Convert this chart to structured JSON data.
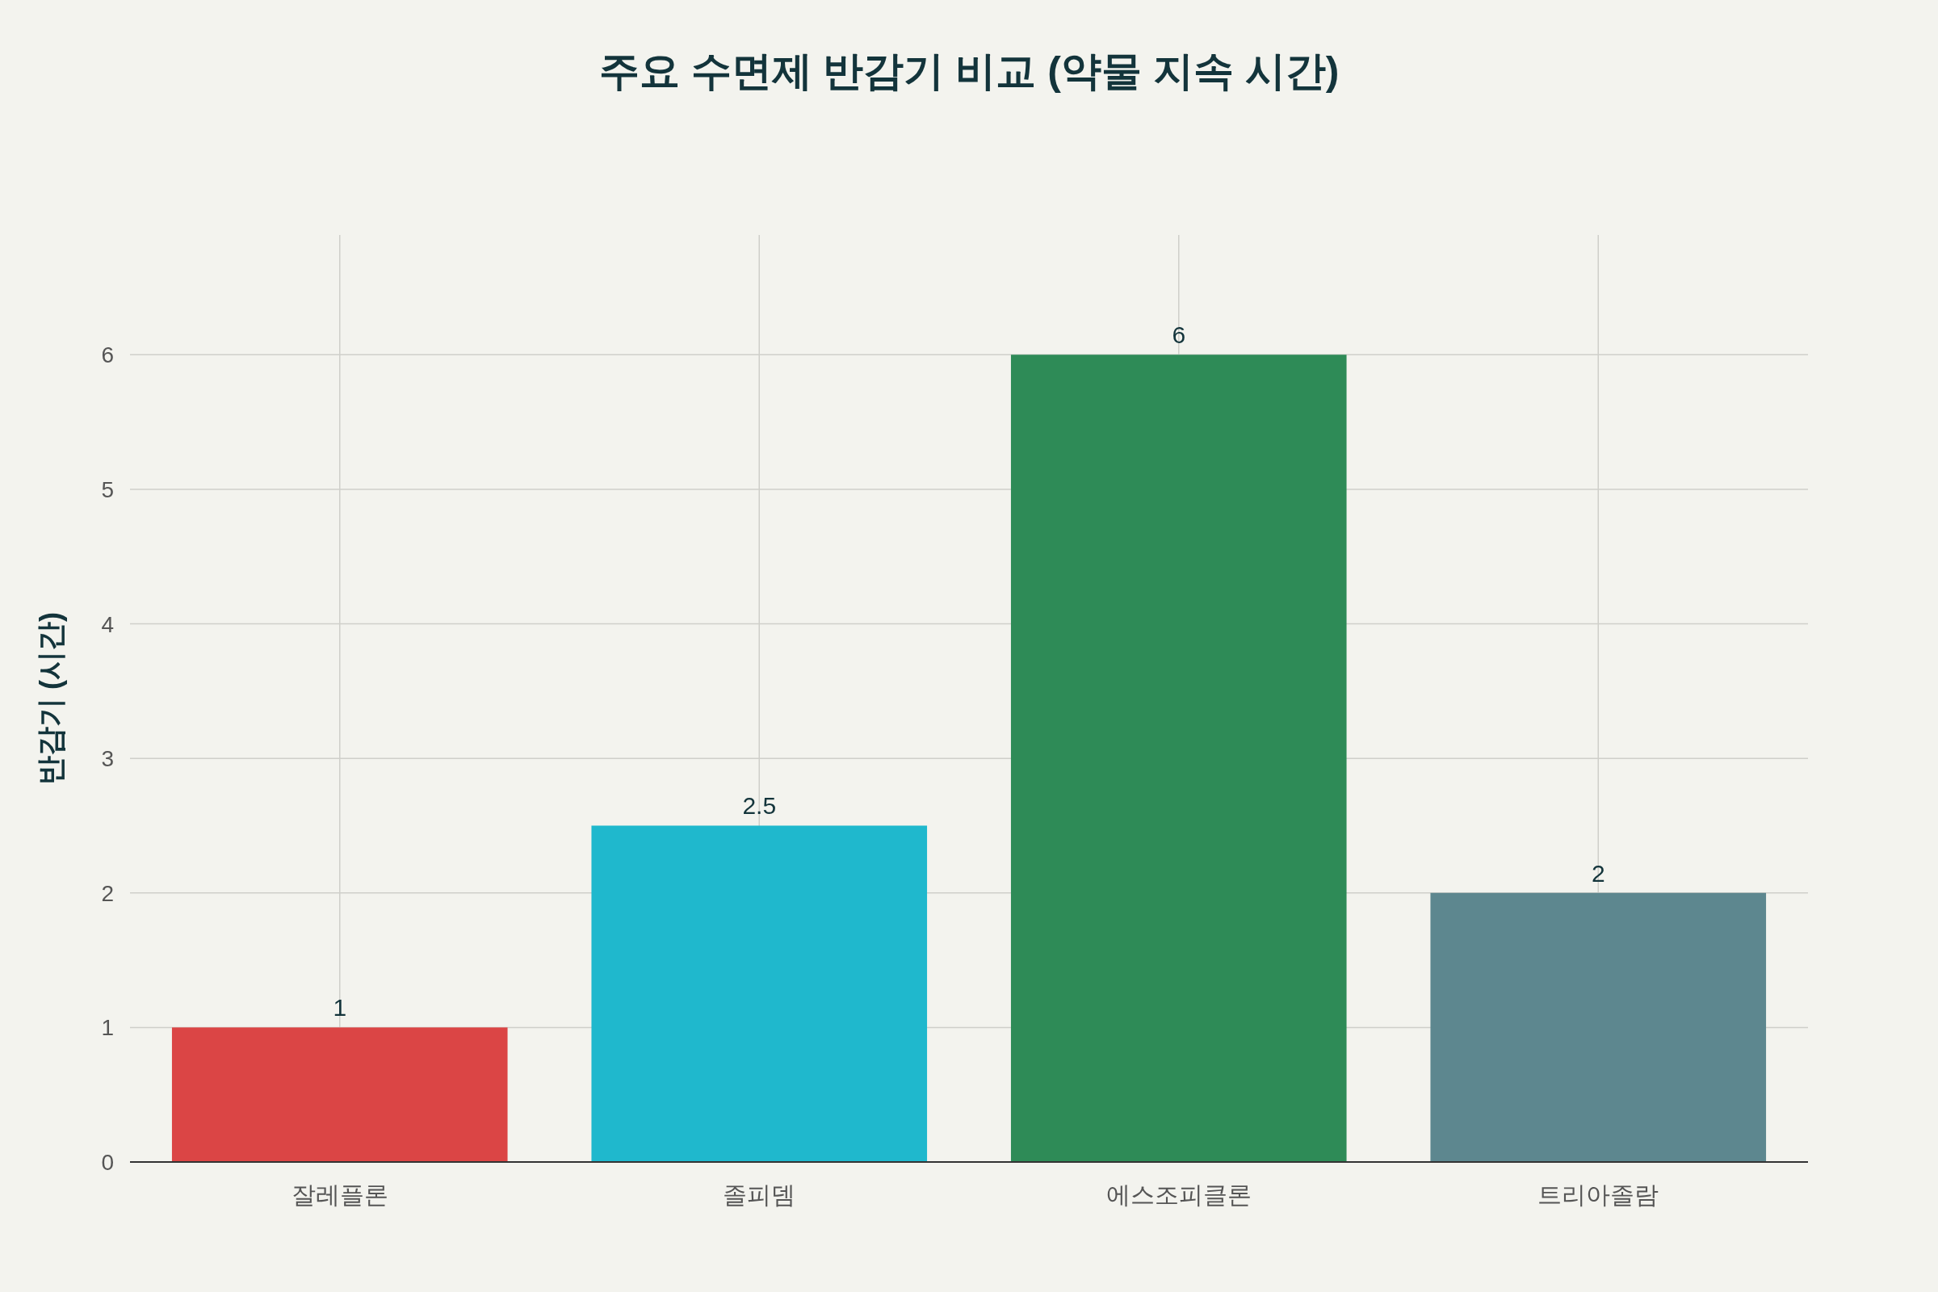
{
  "chart_data": {
    "type": "bar",
    "title": "주요 수면제 반감기 비교 (약물 지속 시간)",
    "ylabel": "반감기 (시간)",
    "categories": [
      "잘레플론",
      "졸피뎀",
      "에스조피클론",
      "트리아졸람"
    ],
    "values": [
      1,
      2.5,
      6,
      2
    ],
    "colors": [
      "#db4545",
      "#1fb8cd",
      "#2e8b57",
      "#5d878f"
    ],
    "ylim": [
      0,
      6.89
    ],
    "yticks": [
      0,
      1,
      2,
      3,
      4,
      5,
      6
    ],
    "grid": true,
    "data_labels": true
  }
}
